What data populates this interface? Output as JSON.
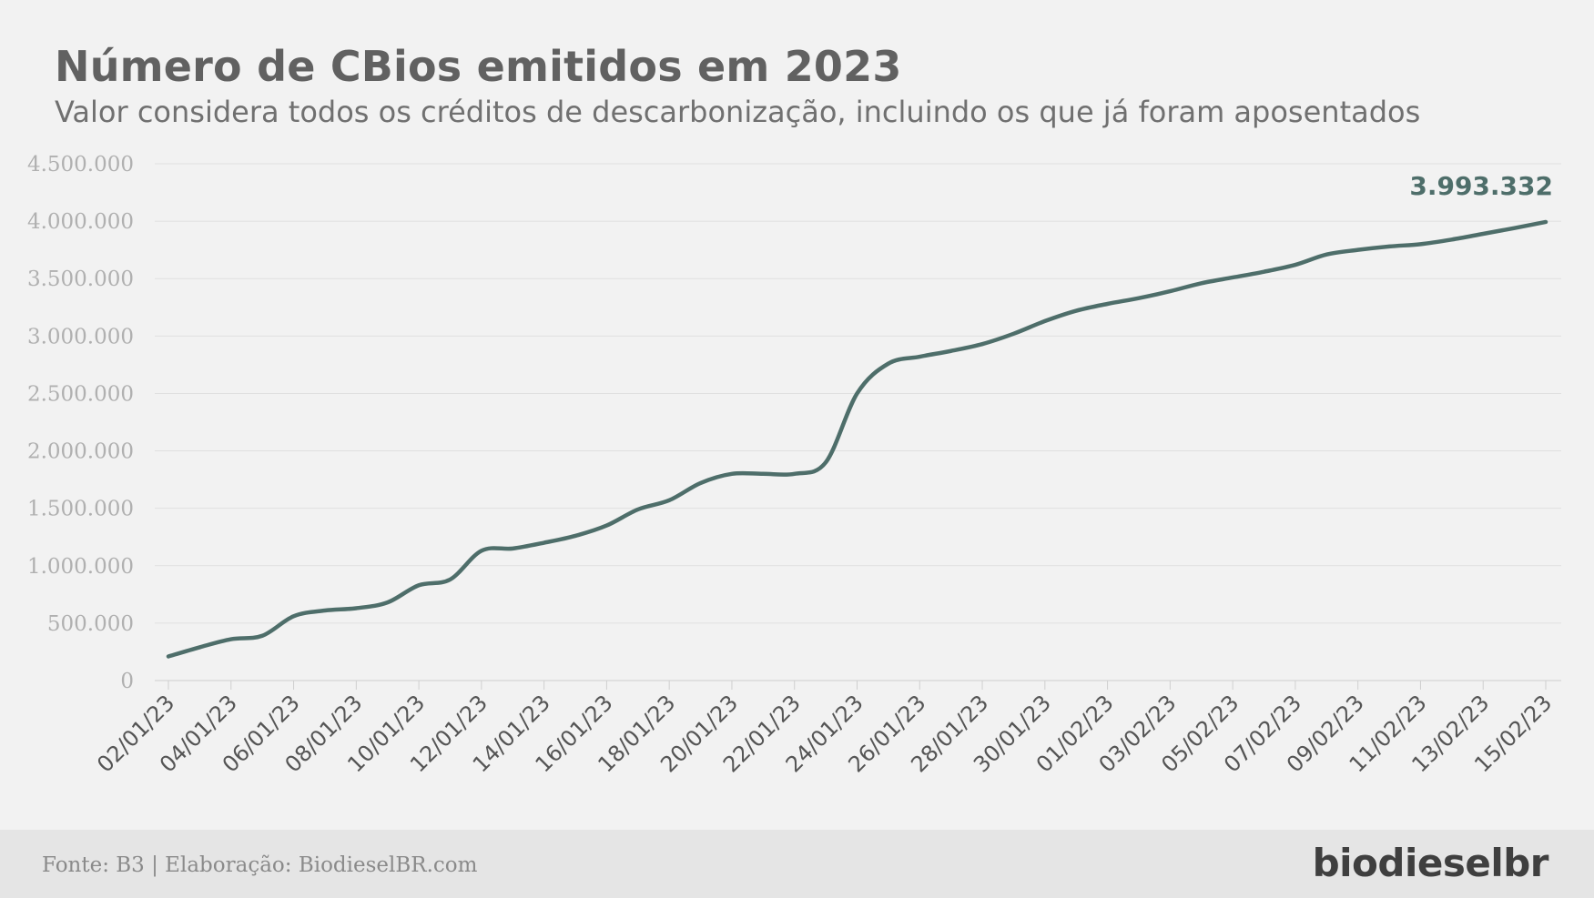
{
  "chart_data": {
    "type": "line",
    "title": "Número de CBios emitidos em 2023",
    "subtitle": "Valor considera todos os créditos de descarbonização, incluindo os que já foram aposentados",
    "x": [
      "02/01/23",
      "03/01/23",
      "04/01/23",
      "05/01/23",
      "06/01/23",
      "07/01/23",
      "08/01/23",
      "09/01/23",
      "10/01/23",
      "11/01/23",
      "12/01/23",
      "13/01/23",
      "14/01/23",
      "15/01/23",
      "16/01/23",
      "17/01/23",
      "18/01/23",
      "19/01/23",
      "20/01/23",
      "21/01/23",
      "22/01/23",
      "23/01/23",
      "24/01/23",
      "25/01/23",
      "26/01/23",
      "27/01/23",
      "28/01/23",
      "29/01/23",
      "30/01/23",
      "31/01/23",
      "01/02/23",
      "02/02/23",
      "03/02/23",
      "04/02/23",
      "05/02/23",
      "06/02/23",
      "07/02/23",
      "08/02/23",
      "09/02/23",
      "10/02/23",
      "11/02/23",
      "12/02/23",
      "13/02/23",
      "14/02/23",
      "15/02/23"
    ],
    "tick_labels": [
      "02/01/23",
      "04/01/23",
      "06/01/23",
      "08/01/23",
      "10/01/23",
      "12/01/23",
      "14/01/23",
      "16/01/23",
      "18/01/23",
      "20/01/23",
      "22/01/23",
      "24/01/23",
      "26/01/23",
      "28/01/23",
      "30/01/23",
      "01/02/23",
      "03/02/23",
      "05/02/23",
      "07/02/23",
      "09/02/23",
      "11/02/23",
      "13/02/23",
      "15/02/23"
    ],
    "series": [
      {
        "values": [
          210000,
          290000,
          360000,
          390000,
          560000,
          610000,
          630000,
          680000,
          830000,
          880000,
          1130000,
          1150000,
          1200000,
          1260000,
          1350000,
          1490000,
          1570000,
          1720000,
          1800000,
          1800000,
          1800000,
          1900000,
          2500000,
          2760000,
          2820000,
          2870000,
          2930000,
          3020000,
          3130000,
          3220000,
          3280000,
          3330000,
          3390000,
          3460000,
          3510000,
          3560000,
          3620000,
          3710000,
          3750000,
          3780000,
          3800000,
          3840000,
          3890000,
          3940000,
          3993332
        ],
        "color": "#4e6e6a"
      }
    ],
    "ylim": [
      0,
      4500000
    ],
    "yticks": [
      0,
      500000,
      1000000,
      1500000,
      2000000,
      2500000,
      3000000,
      3500000,
      4000000,
      4500000
    ],
    "ytick_labels": [
      "0",
      "500.000",
      "1.000.000",
      "1.500.000",
      "2.000.000",
      "2.500.000",
      "3.000.000",
      "3.500.000",
      "4.000.000",
      "4.500.000"
    ],
    "grid": true,
    "annotations": [
      {
        "text": "3.993.332",
        "x": "15/02/23",
        "y": 3993332
      }
    ]
  },
  "footer": {
    "source": "Fonte: B3 | Elaboração: BiodieselBR.com",
    "logo": "biodieselbr"
  }
}
